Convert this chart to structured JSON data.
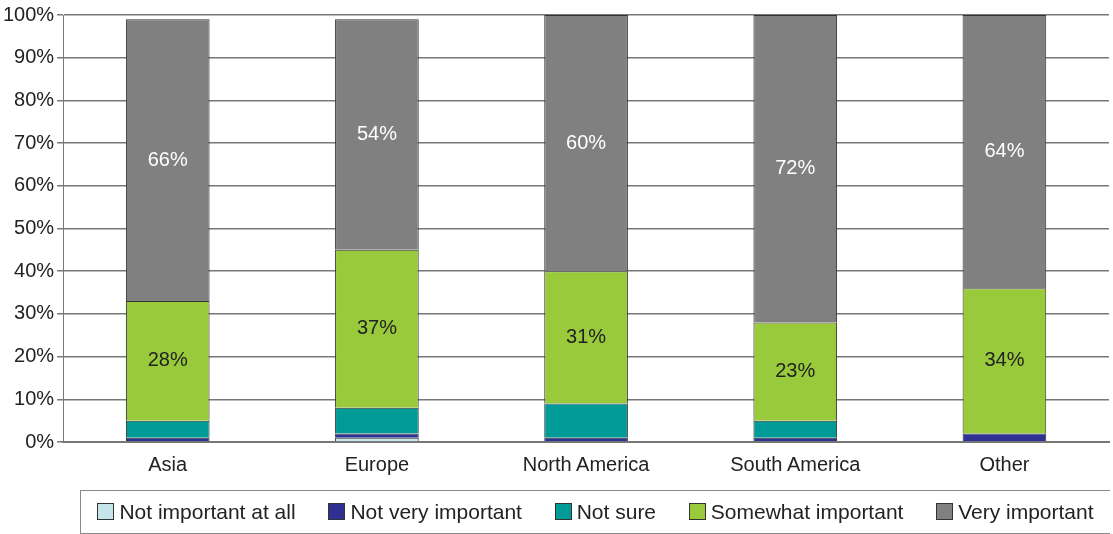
{
  "chart_data": {
    "type": "bar",
    "stacked": true,
    "categories": [
      "Asia",
      "Europe",
      "North America",
      "South America",
      "Other"
    ],
    "series": [
      {
        "name": "Not important at all",
        "color": "#c6e5ea",
        "values": [
          0,
          1,
          0,
          0,
          0
        ]
      },
      {
        "name": "Not very important",
        "color": "#2e3192",
        "values": [
          1,
          1,
          1,
          1,
          2
        ]
      },
      {
        "name": "Not sure",
        "color": "#009a97",
        "values": [
          4,
          6,
          8,
          4,
          0
        ]
      },
      {
        "name": "Somewhat important",
        "color": "#99ca3c",
        "values": [
          28,
          37,
          31,
          23,
          34
        ],
        "value_labels": [
          "28%",
          "37%",
          "31%",
          "23%",
          "34%"
        ]
      },
      {
        "name": "Very important",
        "color": "#808080",
        "values": [
          66,
          54,
          60,
          72,
          64
        ],
        "value_labels": [
          "66%",
          "54%",
          "60%",
          "72%",
          "64%"
        ]
      }
    ],
    "ylim": [
      0,
      100
    ],
    "yticks": [
      {
        "value": 0,
        "label": "0%"
      },
      {
        "value": 10,
        "label": "10%"
      },
      {
        "value": 20,
        "label": "20%"
      },
      {
        "value": 30,
        "label": "30%"
      },
      {
        "value": 40,
        "label": "40%"
      },
      {
        "value": 50,
        "label": "50%"
      },
      {
        "value": 60,
        "label": "60%"
      },
      {
        "value": 70,
        "label": "70%"
      },
      {
        "value": 80,
        "label": "80%"
      },
      {
        "value": 90,
        "label": "90%"
      },
      {
        "value": 100,
        "label": "100%"
      }
    ],
    "grid": "y",
    "legend": "bottom"
  }
}
